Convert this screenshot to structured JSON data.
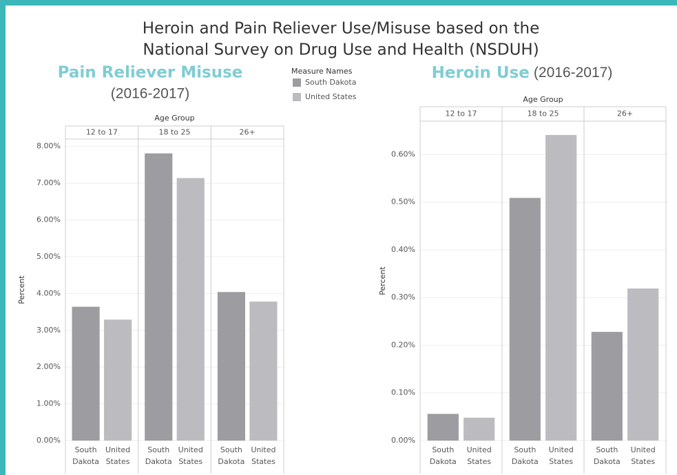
{
  "title": [
    "Heroin and Pain Reliever Use/Misuse based on the",
    "National Survey on Drug Use and Health (NSDUH)"
  ],
  "legend_title": "Measure Names",
  "chart_data": [
    {
      "type": "bar",
      "title": "Pain Reliever Misuse",
      "subtitle": "(2016-2017)",
      "facet_label": "Age Group",
      "facets": [
        "12 to 17",
        "18 to 25",
        "26+"
      ],
      "y_label": "Percent",
      "series": [
        {
          "name": "South Dakota",
          "color": "#9d9da1",
          "values": [
            3.64,
            7.81,
            4.04
          ]
        },
        {
          "name": "United States",
          "color": "#bcbcc0",
          "values": [
            3.29,
            7.14,
            3.78
          ]
        }
      ],
      "ylim": [
        0,
        8.2
      ],
      "yticks": [
        {
          "value": 0,
          "label": "0.00%"
        },
        {
          "value": 1,
          "label": "1.00%"
        },
        {
          "value": 2,
          "label": "2.00%"
        },
        {
          "value": 3,
          "label": "3.00%"
        },
        {
          "value": 4,
          "label": "4.00%"
        },
        {
          "value": 5,
          "label": "5.00%"
        },
        {
          "value": 6,
          "label": "6.00%"
        },
        {
          "value": 7,
          "label": "7.00%"
        },
        {
          "value": 8,
          "label": "8.00%"
        }
      ],
      "grid": true
    },
    {
      "type": "bar",
      "title": "Heroin Use",
      "subtitle": "(2016-2017)",
      "facet_label": "Age Group",
      "facets": [
        "12 to 17",
        "18 to 25",
        "26+"
      ],
      "y_label": "Percent",
      "series": [
        {
          "name": "South Dakota",
          "color": "#9d9da1",
          "values": [
            0.056,
            0.509,
            0.228
          ]
        },
        {
          "name": "United States",
          "color": "#bcbcc0",
          "values": [
            0.048,
            0.641,
            0.319
          ]
        }
      ],
      "ylim": [
        0,
        0.67
      ],
      "yticks": [
        {
          "value": 0,
          "label": "0.00%"
        },
        {
          "value": 0.1,
          "label": "0.10%"
        },
        {
          "value": 0.2,
          "label": "0.20%"
        },
        {
          "value": 0.3,
          "label": "0.30%"
        },
        {
          "value": 0.4,
          "label": "0.40%"
        },
        {
          "value": 0.5,
          "label": "0.50%"
        },
        {
          "value": 0.6,
          "label": "0.60%"
        }
      ],
      "grid": true
    }
  ]
}
